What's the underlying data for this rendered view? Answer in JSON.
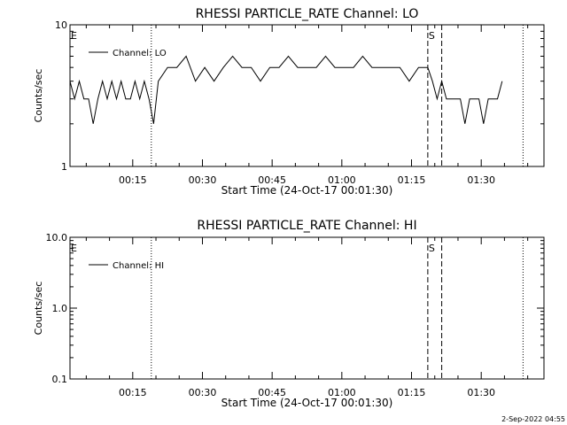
{
  "chart_data": [
    {
      "type": "line",
      "title": "RHESSI PARTICLE_RATE Channel: LO",
      "xlabel": "Start Time (24-Oct-17 00:01:30)",
      "ylabel": "Counts/sec",
      "y_scale": "log",
      "ylim": [
        1,
        10
      ],
      "y_ticks": [
        "1",
        "10"
      ],
      "xlim": [
        "00:01:30",
        "01:43:30"
      ],
      "x_ticks": [
        "00:15",
        "00:30",
        "00:45",
        "01:00",
        "01:15",
        "01:30"
      ],
      "legend": "top-left",
      "series": [
        {
          "name": "Channel: LO",
          "x": [
            "00:01:30",
            "00:02:30",
            "00:03:30",
            "00:04:30",
            "00:05:30",
            "00:06:30",
            "00:07:30",
            "00:08:30",
            "00:09:30",
            "00:10:30",
            "00:11:30",
            "00:12:30",
            "00:13:30",
            "00:14:30",
            "00:15:30",
            "00:16:30",
            "00:17:30",
            "00:18:30",
            "00:19:30",
            "00:20:30",
            "00:22:30",
            "00:24:30",
            "00:26:30",
            "00:28:30",
            "00:30:30",
            "00:32:30",
            "00:34:30",
            "00:36:30",
            "00:38:30",
            "00:40:30",
            "00:42:30",
            "00:44:30",
            "00:46:30",
            "00:48:30",
            "00:50:30",
            "00:52:30",
            "00:54:30",
            "00:56:30",
            "00:58:30",
            "01:00:30",
            "01:02:30",
            "01:04:30",
            "01:06:30",
            "01:08:30",
            "01:10:30",
            "01:12:30",
            "01:14:30",
            "01:16:30",
            "01:18:30",
            "01:19:30",
            "01:20:30",
            "01:21:30",
            "01:22:30",
            "01:23:30",
            "01:24:30",
            "01:25:30",
            "01:26:30",
            "01:27:30",
            "01:28:30",
            "01:29:30",
            "01:30:30",
            "01:31:30",
            "01:32:30",
            "01:33:30",
            "01:34:30"
          ],
          "y": [
            4,
            3,
            4,
            3,
            3,
            2,
            3,
            4,
            3,
            4,
            3,
            4,
            3,
            3,
            4,
            3,
            4,
            3,
            2,
            4,
            5,
            5,
            6,
            4,
            5,
            4,
            5,
            6,
            5,
            5,
            4,
            5,
            5,
            6,
            5,
            5,
            5,
            6,
            5,
            5,
            5,
            6,
            5,
            5,
            5,
            5,
            4,
            5,
            5,
            4,
            3,
            4,
            3,
            3,
            3,
            3,
            2,
            3,
            3,
            3,
            2,
            3,
            3,
            3,
            4
          ]
        }
      ],
      "markers": [
        {
          "label": "E",
          "x": "00:01:30",
          "style": "none"
        },
        {
          "label": "S",
          "x": "01:18:30",
          "style": "dashed"
        },
        {
          "label": "",
          "x": "00:19:00",
          "style": "dotted"
        },
        {
          "label": "",
          "x": "01:21:30",
          "style": "dashed"
        },
        {
          "label": "",
          "x": "01:39:00",
          "style": "dotted"
        }
      ]
    },
    {
      "type": "line",
      "title": "RHESSI PARTICLE_RATE Channel: HI",
      "xlabel": "Start Time (24-Oct-17 00:01:30)",
      "ylabel": "Counts/sec",
      "y_scale": "log",
      "ylim": [
        0.1,
        10
      ],
      "y_ticks": [
        "0.1",
        "1.0",
        "10.0"
      ],
      "xlim": [
        "00:01:30",
        "01:43:30"
      ],
      "x_ticks": [
        "00:15",
        "00:30",
        "00:45",
        "01:00",
        "01:15",
        "01:30"
      ],
      "legend": "top-left",
      "series": [
        {
          "name": "Channel: HI",
          "x": [],
          "y": []
        }
      ],
      "markers": [
        {
          "label": "E",
          "x": "00:01:30",
          "style": "none"
        },
        {
          "label": "S",
          "x": "01:18:30",
          "style": "dashed"
        },
        {
          "label": "",
          "x": "00:19:00",
          "style": "dotted"
        },
        {
          "label": "",
          "x": "01:21:30",
          "style": "dashed"
        },
        {
          "label": "",
          "x": "01:39:00",
          "style": "dotted"
        }
      ]
    }
  ],
  "footer_timestamp": "2-Sep-2022 04:55"
}
